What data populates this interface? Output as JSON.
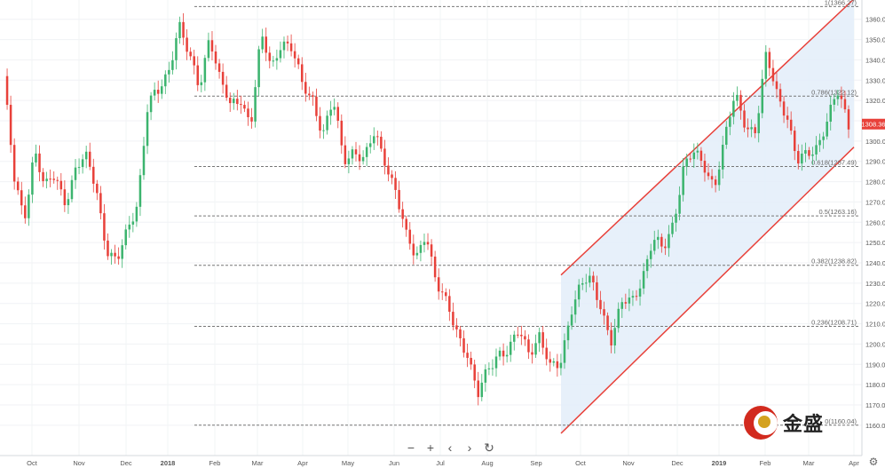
{
  "chart_data": {
    "type": "candlestick",
    "instrument_price_label": "1308.36",
    "y_axis": {
      "ticks": [
        "1360.00",
        "1350.00",
        "1340.00",
        "1330.00",
        "1320.00",
        "1310.00",
        "1300.00",
        "1290.00",
        "1280.00",
        "1270.00",
        "1260.00",
        "1250.00",
        "1240.00",
        "1230.00",
        "1220.00",
        "1210.00",
        "1200.00",
        "1190.00",
        "1180.00",
        "1170.00",
        "1160.00"
      ],
      "ylim": [
        1156,
        1366
      ]
    },
    "x_axis": {
      "ticks": [
        "Oct",
        "Nov",
        "Dec",
        "2018",
        "Feb",
        "Mar",
        "Apr",
        "May",
        "Jun",
        "Jul",
        "Aug",
        "Sep",
        "Oct",
        "Nov",
        "Dec",
        "2019",
        "Feb",
        "Mar",
        "Apr"
      ]
    },
    "fibonacci_levels": [
      {
        "label": "1(1366.27)",
        "value": 1366.27
      },
      {
        "label": "0.786(1322.12)",
        "value": 1322.12
      },
      {
        "label": "0.618(1287.49)",
        "value": 1287.49
      },
      {
        "label": "0.5(1263.16)",
        "value": 1263.16
      },
      {
        "label": "0.382(1238.82)",
        "value": 1238.82
      },
      {
        "label": "0.236(1208.71)",
        "value": 1208.71
      },
      {
        "label": "0(1160.04)",
        "value": 1160.04
      }
    ],
    "channel": {
      "upper": [
        [
          "Sep",
          1234
        ],
        [
          "Apr",
          1370
        ]
      ],
      "lower": [
        [
          "Sep",
          1156
        ],
        [
          "Apr",
          1297
        ]
      ],
      "fill_color": "#e3edf9",
      "line_color": "#e8413a"
    },
    "price_path": [
      [
        "Sep",
        1332
      ],
      [
        "Oct",
        1280
      ],
      [
        "Oct",
        1262
      ],
      [
        "Oct",
        1298
      ],
      [
        "Nov",
        1275
      ],
      [
        "Nov",
        1282
      ],
      [
        "Nov",
        1272
      ],
      [
        "Nov",
        1286
      ],
      [
        "Dec",
        1290
      ],
      [
        "Dec",
        1278
      ],
      [
        "Dec",
        1248
      ],
      [
        "Dec",
        1238
      ],
      [
        "Dec",
        1255
      ],
      [
        "2018",
        1272
      ],
      [
        "2018",
        1318
      ],
      [
        "2018",
        1322
      ],
      [
        "Feb",
        1335
      ],
      [
        "Feb",
        1360
      ],
      [
        "Feb",
        1340
      ],
      [
        "Feb",
        1325
      ],
      [
        "Feb",
        1355
      ],
      [
        "Mar",
        1330
      ],
      [
        "Mar",
        1315
      ],
      [
        "Mar",
        1322
      ],
      [
        "Mar",
        1310
      ],
      [
        "Mar",
        1350
      ],
      [
        "Apr",
        1335
      ],
      [
        "Apr",
        1352
      ],
      [
        "Apr",
        1345
      ],
      [
        "Apr",
        1325
      ],
      [
        "May",
        1322
      ],
      [
        "May",
        1305
      ],
      [
        "May",
        1318
      ],
      [
        "May",
        1290
      ],
      [
        "Jun",
        1298
      ],
      [
        "Jun",
        1290
      ],
      [
        "Jun",
        1302
      ],
      [
        "Jun",
        1292
      ],
      [
        "Jul",
        1278
      ],
      [
        "Jul",
        1252
      ],
      [
        "Jul",
        1242
      ],
      [
        "Jul",
        1258
      ],
      [
        "Jul",
        1228
      ],
      [
        "Aug",
        1218
      ],
      [
        "Aug",
        1208
      ],
      [
        "Aug",
        1196
      ],
      [
        "Aug",
        1172
      ],
      [
        "Aug",
        1188
      ],
      [
        "Sep",
        1198
      ],
      [
        "Sep",
        1195
      ],
      [
        "Sep",
        1205
      ],
      [
        "Sep",
        1198
      ],
      [
        "Oct",
        1205
      ],
      [
        "Oct",
        1186
      ],
      [
        "Oct",
        1190
      ],
      [
        "Oct",
        1218
      ],
      [
        "Oct",
        1228
      ],
      [
        "Nov",
        1230
      ],
      [
        "Nov",
        1220
      ],
      [
        "Nov",
        1202
      ],
      [
        "Nov",
        1218
      ],
      [
        "Dec",
        1222
      ],
      [
        "Dec",
        1235
      ],
      [
        "Dec",
        1250
      ],
      [
        "Dec",
        1245
      ],
      [
        "Dec",
        1262
      ],
      [
        "2019",
        1288
      ],
      [
        "2019",
        1292
      ],
      [
        "2019",
        1288
      ],
      [
        "2019",
        1280
      ],
      [
        "Feb",
        1300
      ],
      [
        "Feb",
        1322
      ],
      [
        "Feb",
        1310
      ],
      [
        "Feb",
        1305
      ],
      [
        "Feb",
        1340
      ],
      [
        "Mar",
        1325
      ],
      [
        "Mar",
        1315
      ],
      [
        "Mar",
        1288
      ],
      [
        "Mar",
        1292
      ],
      [
        "Mar",
        1300
      ],
      [
        "Mar",
        1312
      ],
      [
        "Apr",
        1322
      ],
      [
        "Apr",
        1308
      ]
    ],
    "up_color": "#3cb46e",
    "down_color": "#e8413a"
  },
  "controls": {
    "zoom_out": "−",
    "zoom_in": "+",
    "scroll_left": "‹",
    "scroll_right": "›",
    "reset": "↻",
    "settings": "⚙"
  },
  "logo": {
    "text": "金盛"
  }
}
